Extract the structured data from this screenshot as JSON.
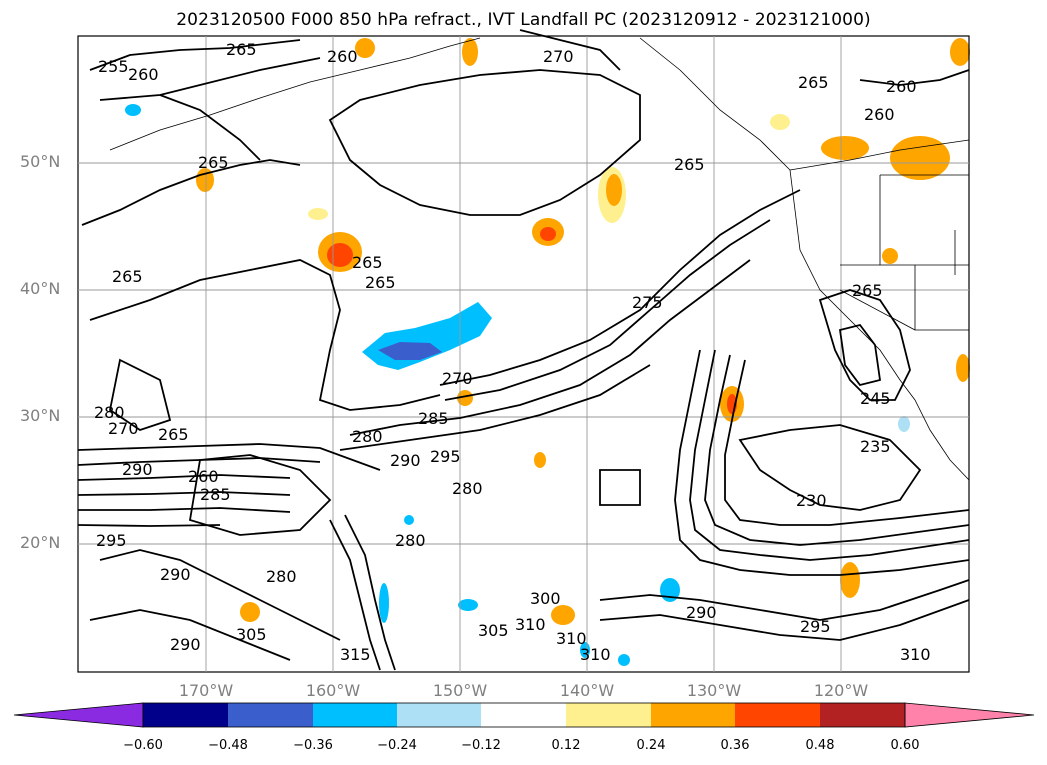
{
  "title": "2023120500 F000 850 hPa refract., IVT Landfall PC (2023120912 - 2023121000)",
  "lat_labels": [
    "50°N",
    "40°N",
    "30°N",
    "20°N"
  ],
  "lon_labels": [
    "170°W",
    "160°W",
    "150°W",
    "140°W",
    "130°W",
    "120°W"
  ],
  "colorbar": {
    "ticks": [
      "−0.60",
      "−0.48",
      "−0.36",
      "−0.24",
      "−0.12",
      "0.12",
      "0.24",
      "0.36",
      "0.48",
      "0.60"
    ],
    "colors": [
      "#8a2be2",
      "#00008b",
      "#3a5fcd",
      "#00bfff",
      "#aee0f5",
      "#ffffff",
      "#fff08f",
      "#ffa500",
      "#ff4500",
      "#b22222",
      "#ff82ab"
    ]
  },
  "contour_labels": [
    "255",
    "260",
    "265",
    "260",
    "270",
    "265",
    "260",
    "260",
    "265",
    "265",
    "265",
    "265",
    "265",
    "270",
    "275",
    "280",
    "285",
    "280",
    "265",
    "270",
    "280",
    "290",
    "295",
    "290",
    "280",
    "260",
    "285",
    "230",
    "245",
    "235",
    "265",
    "295",
    "290",
    "280",
    "305",
    "300",
    "310",
    "305",
    "310",
    "315",
    "290",
    "295",
    "290",
    "310",
    "310"
  ]
}
